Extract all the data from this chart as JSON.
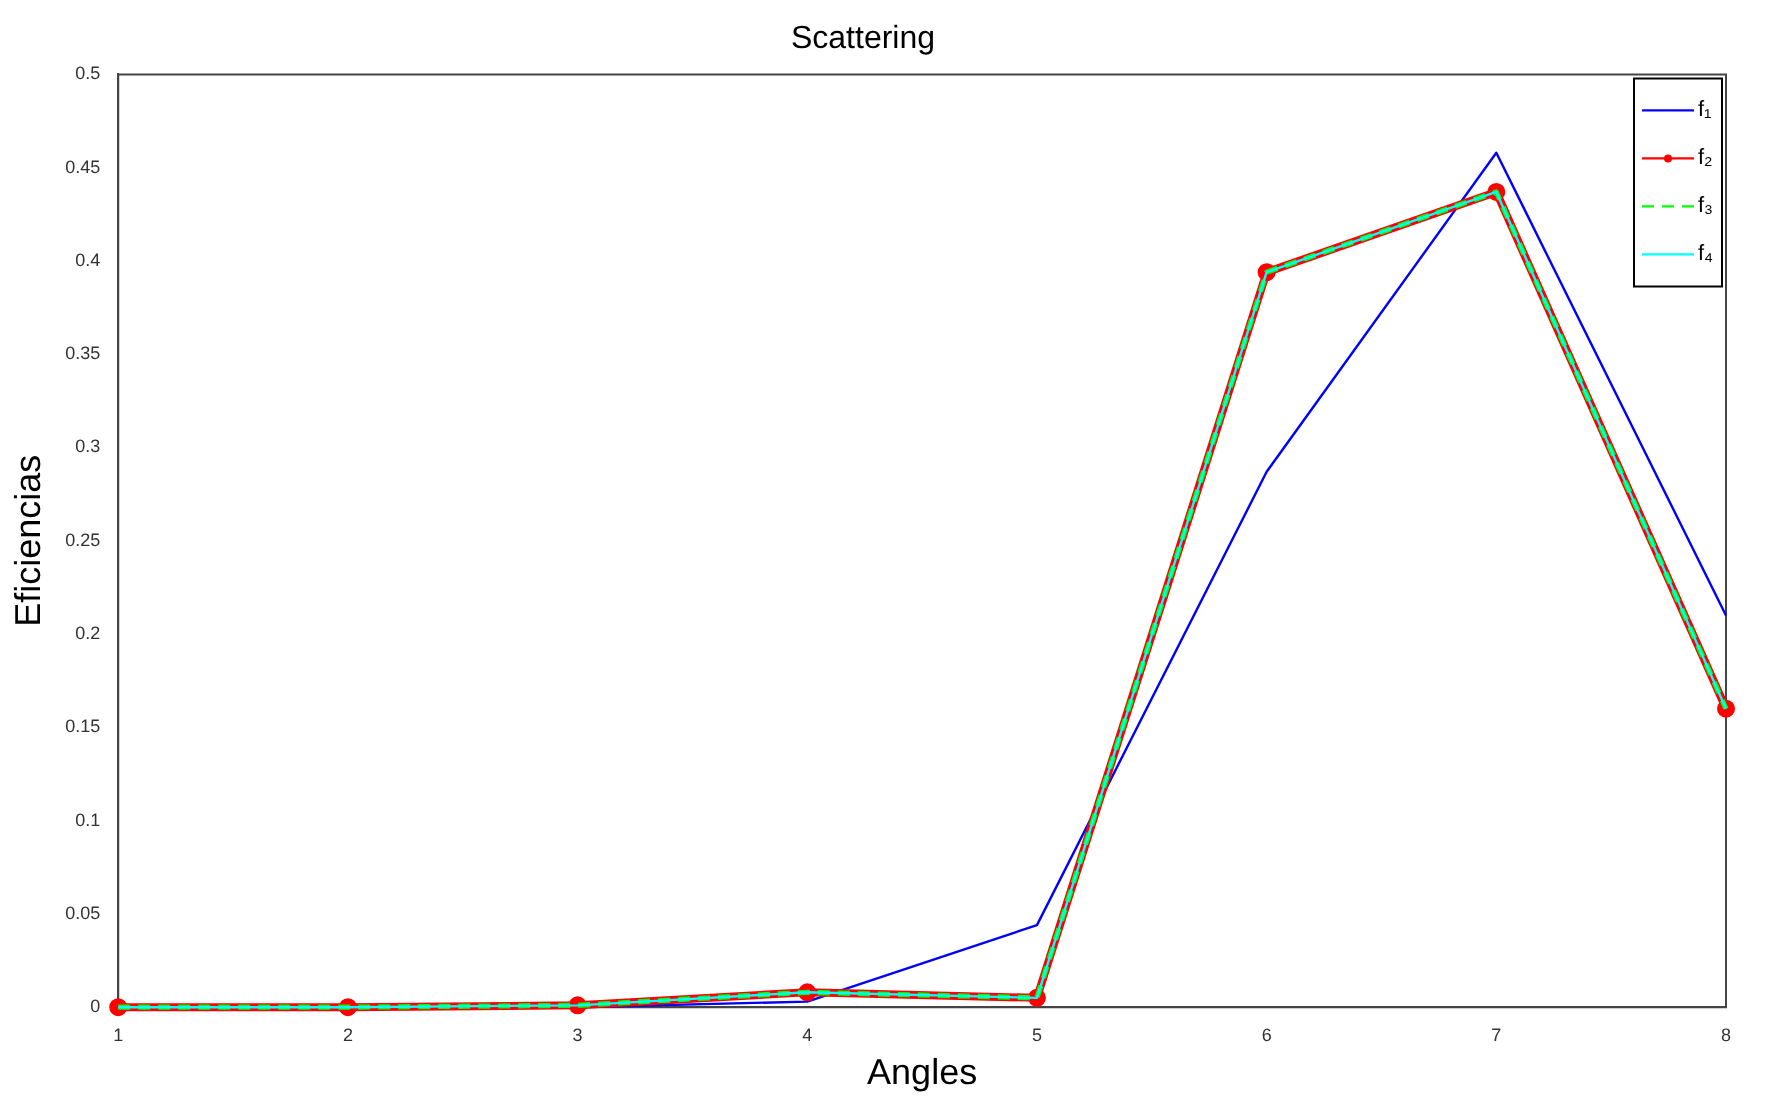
{
  "chart_data": {
    "type": "line",
    "title": "Scattering",
    "xlabel": "Angles",
    "ylabel": "Eficiencias",
    "x": [
      1,
      2,
      3,
      4,
      5,
      6,
      7,
      8
    ],
    "series": [
      {
        "name": "f₁",
        "color": "#0000ff",
        "values": [
          0,
          0,
          0,
          0.003,
          0.044,
          0.287,
          0.458,
          0.21
        ],
        "marker": "none",
        "line_style": "solid"
      },
      {
        "name": "f₂",
        "color": "#ff0000",
        "values": [
          0,
          0,
          0.001,
          0.008,
          0.005,
          0.394,
          0.437,
          0.16
        ],
        "marker": "circle",
        "line_style": "solid"
      },
      {
        "name": "f₃",
        "color": "#00ff00",
        "values": [
          0,
          0,
          0.001,
          0.008,
          0.005,
          0.394,
          0.437,
          0.16
        ],
        "marker": "none",
        "line_style": "dashed"
      },
      {
        "name": "f₄",
        "color": "#00ffff",
        "values": [
          0,
          0,
          0.001,
          0.008,
          0.005,
          0.394,
          0.437,
          0.16
        ],
        "marker": "none",
        "line_style": "solid"
      }
    ],
    "xlim": [
      1,
      8
    ],
    "xticks": [
      1,
      2,
      3,
      4,
      5,
      6,
      7,
      8
    ],
    "ylim": [
      0,
      0.5
    ],
    "yticks": [
      0,
      0.05,
      0.1,
      0.15,
      0.2,
      0.25,
      0.3,
      0.35,
      0.4,
      0.45,
      0.5
    ],
    "grid": false,
    "legend": "top right"
  }
}
